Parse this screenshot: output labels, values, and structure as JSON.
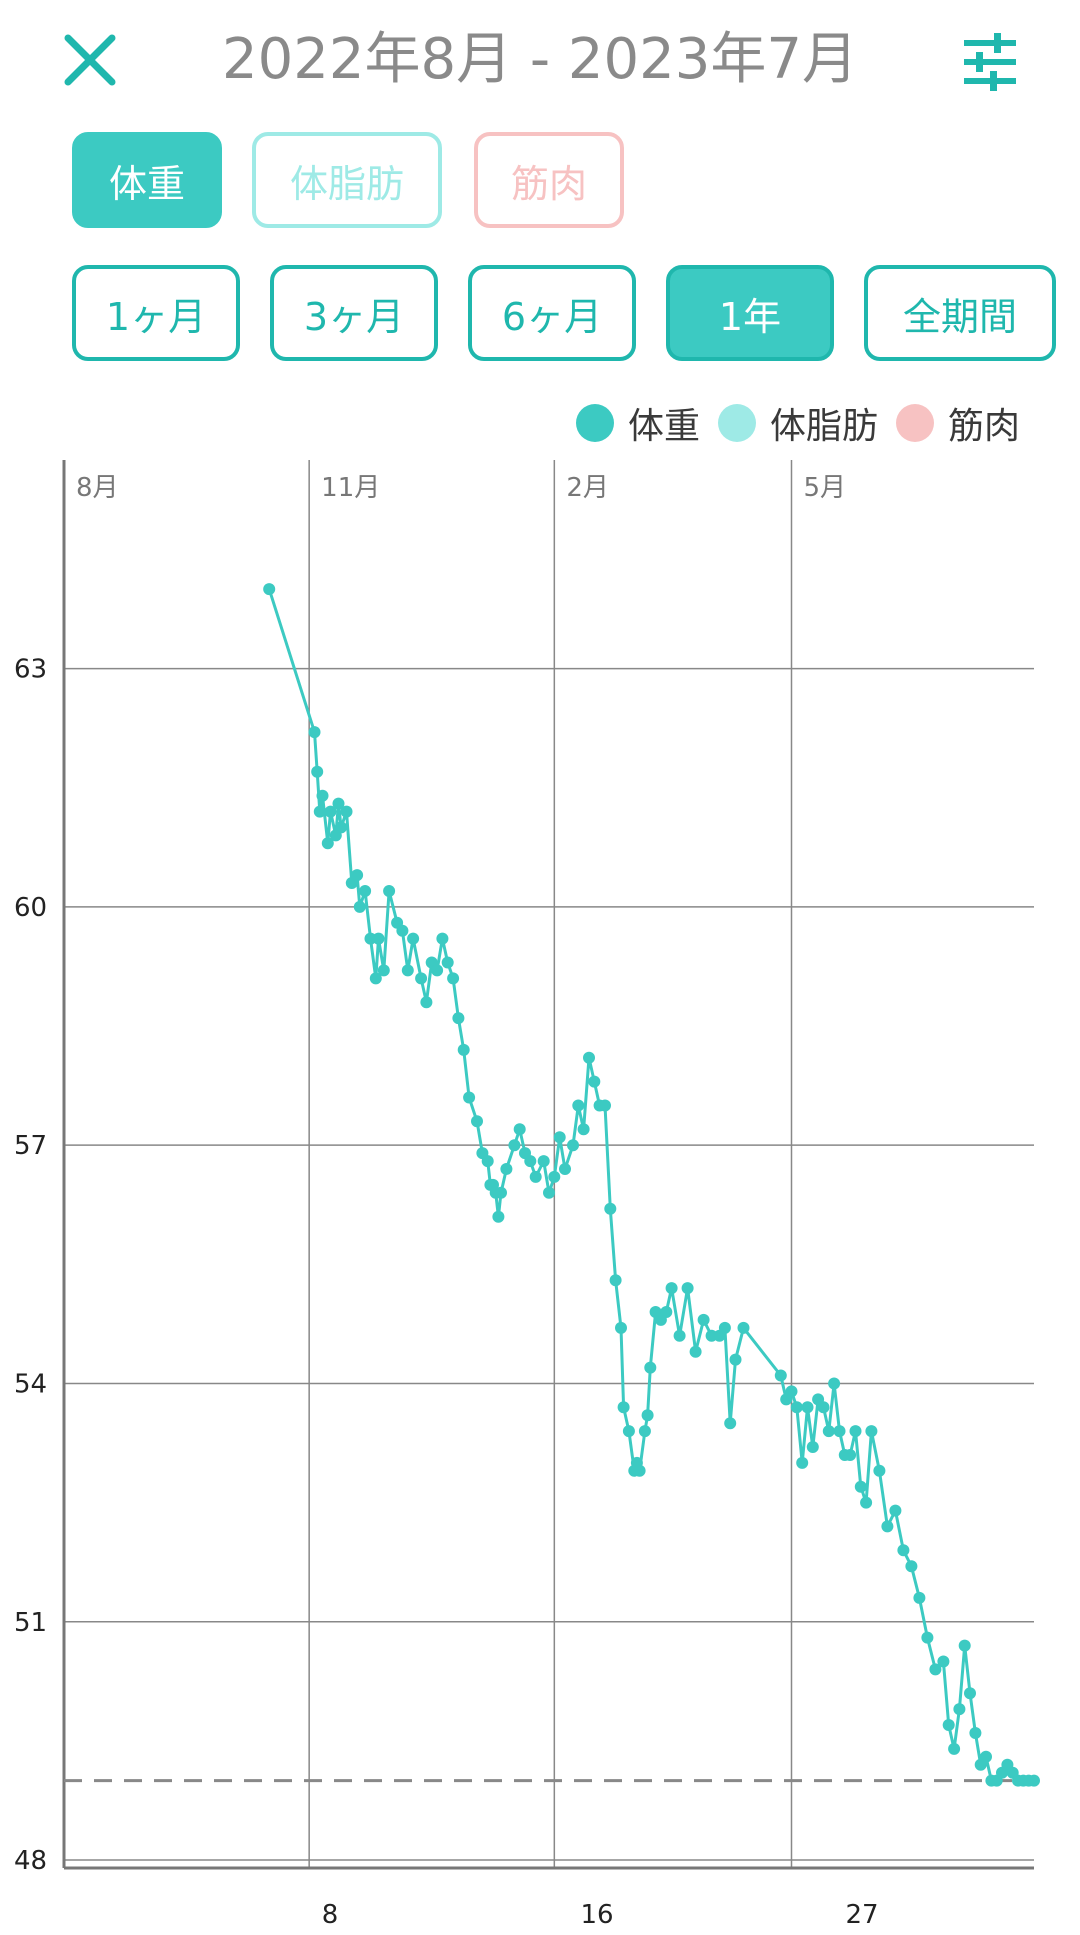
{
  "header": {
    "title": "2022年8月 - 2023年7月",
    "close_icon": "close-icon",
    "settings_icon": "sliders-icon"
  },
  "metrics": [
    {
      "label": "体重",
      "state": "active",
      "color": "#3ccac2"
    },
    {
      "label": "体脂肪",
      "state": "inactive",
      "color": "#9eeae6"
    },
    {
      "label": "筋肉",
      "state": "inactive",
      "color": "#f7c2c2"
    }
  ],
  "ranges": [
    {
      "label": "1ヶ月",
      "active": false
    },
    {
      "label": "3ヶ月",
      "active": false
    },
    {
      "label": "6ヶ月",
      "active": false
    },
    {
      "label": "1年",
      "active": true
    },
    {
      "label": "全期間",
      "active": false
    }
  ],
  "legend": [
    {
      "label": "体重",
      "color": "#3ccac2"
    },
    {
      "label": "体脂肪",
      "color": "#9eeae6"
    },
    {
      "label": "筋肉",
      "color": "#f7c2c2"
    }
  ],
  "colors": {
    "accent": "#3ccac2",
    "accent_dark": "#1fb7ad",
    "target_line": "#888888"
  },
  "chart_data": {
    "type": "line",
    "month_labels": [
      "8月",
      "11月",
      "2月",
      "5月"
    ],
    "x_tick_labels": [
      "8",
      "16",
      "27"
    ],
    "y_tick_labels": [
      "48",
      "51",
      "54",
      "57",
      "60",
      "63"
    ],
    "ylim": [
      47.9,
      65.5
    ],
    "xlim": [
      "2022-08-01",
      "2023-07-31"
    ],
    "target_line": 49.0,
    "grid": true,
    "series": [
      {
        "x": [
          "2022-10-17",
          "2022-11-03",
          "2022-11-04",
          "2022-11-05",
          "2022-11-06",
          "2022-11-08",
          "2022-11-09",
          "2022-11-11",
          "2022-11-12",
          "2022-11-13",
          "2022-11-15",
          "2022-11-17",
          "2022-11-19",
          "2022-11-20",
          "2022-11-22",
          "2022-11-24",
          "2022-11-26",
          "2022-11-27",
          "2022-11-29",
          "2022-12-01",
          "2022-12-04",
          "2022-12-06",
          "2022-12-08",
          "2022-12-10",
          "2022-12-13",
          "2022-12-15",
          "2022-12-17",
          "2022-12-19",
          "2022-12-21",
          "2022-12-23",
          "2022-12-25",
          "2022-12-27",
          "2022-12-29",
          "2022-12-31",
          "2023-01-03",
          "2023-01-05",
          "2023-01-07",
          "2023-01-08",
          "2023-01-09",
          "2023-01-10",
          "2023-01-11",
          "2023-01-12",
          "2023-01-14",
          "2023-01-17",
          "2023-01-19",
          "2023-01-21",
          "2023-01-23",
          "2023-01-25",
          "2023-01-28",
          "2023-01-30",
          "2023-02-01",
          "2023-02-03",
          "2023-02-05",
          "2023-02-08",
          "2023-02-10",
          "2023-02-12",
          "2023-02-14",
          "2023-02-16",
          "2023-02-18",
          "2023-02-20",
          "2023-02-22",
          "2023-02-24",
          "2023-02-26",
          "2023-02-27",
          "2023-03-01",
          "2023-03-03",
          "2023-03-04",
          "2023-03-05",
          "2023-03-07",
          "2023-03-08",
          "2023-03-09",
          "2023-03-11",
          "2023-03-13",
          "2023-03-15",
          "2023-03-17",
          "2023-03-20",
          "2023-03-23",
          "2023-03-26",
          "2023-03-29",
          "2023-04-01",
          "2023-04-04",
          "2023-04-06",
          "2023-04-08",
          "2023-04-10",
          "2023-04-13",
          "2023-04-27",
          "2023-04-29",
          "2023-05-01",
          "2023-05-03",
          "2023-05-05",
          "2023-05-07",
          "2023-05-09",
          "2023-05-11",
          "2023-05-13",
          "2023-05-15",
          "2023-05-17",
          "2023-05-19",
          "2023-05-21",
          "2023-05-23",
          "2023-05-25",
          "2023-05-27",
          "2023-05-29",
          "2023-05-31",
          "2023-06-03",
          "2023-06-06",
          "2023-06-09",
          "2023-06-12",
          "2023-06-15",
          "2023-06-18",
          "2023-06-21",
          "2023-06-24",
          "2023-06-27",
          "2023-06-29",
          "2023-07-01",
          "2023-07-03",
          "2023-07-05",
          "2023-07-07",
          "2023-07-09",
          "2023-07-11",
          "2023-07-13",
          "2023-07-15",
          "2023-07-17",
          "2023-07-19",
          "2023-07-21",
          "2023-07-23",
          "2023-07-25",
          "2023-07-27",
          "2023-07-29",
          "2023-07-31"
        ],
        "y": [
          64.0,
          62.2,
          61.7,
          61.2,
          61.4,
          60.8,
          61.2,
          60.9,
          61.3,
          61.0,
          61.2,
          60.3,
          60.4,
          60.0,
          60.2,
          59.6,
          59.1,
          59.6,
          59.2,
          60.2,
          59.8,
          59.7,
          59.2,
          59.6,
          59.1,
          58.8,
          59.3,
          59.2,
          59.6,
          59.3,
          59.1,
          58.6,
          58.2,
          57.6,
          57.3,
          56.9,
          56.8,
          56.5,
          56.5,
          56.4,
          56.1,
          56.4,
          56.7,
          57.0,
          57.2,
          56.9,
          56.8,
          56.6,
          56.8,
          56.4,
          56.6,
          57.1,
          56.7,
          57.0,
          57.5,
          57.2,
          58.1,
          57.8,
          57.5,
          57.5,
          56.2,
          55.3,
          54.7,
          53.7,
          53.4,
          52.9,
          53.0,
          52.9,
          53.4,
          53.6,
          54.2,
          54.9,
          54.8,
          54.9,
          55.2,
          54.6,
          55.2,
          54.4,
          54.8,
          54.6,
          54.6,
          54.7,
          53.5,
          54.3,
          54.7,
          54.1,
          53.8,
          53.9,
          53.7,
          53.0,
          53.7,
          53.2,
          53.8,
          53.7,
          53.4,
          54.0,
          53.4,
          53.1,
          53.1,
          53.4,
          52.7,
          52.5,
          53.4,
          52.9,
          52.2,
          52.4,
          51.9,
          51.7,
          51.3,
          50.8,
          50.4,
          50.5,
          49.7,
          49.4,
          49.9,
          50.7,
          50.1,
          49.6,
          49.2,
          49.3,
          49.0,
          49.0,
          49.1,
          49.2,
          49.1,
          49.0,
          49.0,
          49.0,
          49.0
        ]
      }
    ]
  }
}
